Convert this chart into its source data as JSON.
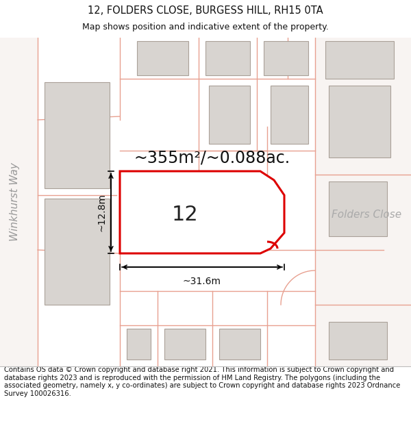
{
  "title_line1": "12, FOLDERS CLOSE, BURGESS HILL, RH15 0TA",
  "title_line2": "Map shows position and indicative extent of the property.",
  "area_text": "~355m²/~0.088ac.",
  "label_12": "12",
  "dim_width": "~31.6m",
  "dim_height": "~12.8m",
  "street_left": "Winkhurst Way",
  "street_right": "Folders Close",
  "copyright_text": "Contains OS data © Crown copyright and database right 2021. This information is subject to Crown copyright and database rights 2023 and is reproduced with the permission of HM Land Registry. The polygons (including the associated geometry, namely x, y co-ordinates) are subject to Crown copyright and database rights 2023 Ordnance Survey 100026316.",
  "map_bg": "#f5f0ee",
  "property_outline_color": "#dd0000",
  "property_fill": "#ffffff",
  "building_fill": "#d8d4d0",
  "building_edge": "#aaa098",
  "pink_line": "#e8a090",
  "road_bg": "#f8f4f2",
  "title_fontsize": 10.5,
  "subtitle_fontsize": 9,
  "label_fontsize": 22,
  "area_fontsize": 17,
  "dim_fontsize": 10,
  "street_fontsize": 11,
  "copyright_fontsize": 7.2
}
